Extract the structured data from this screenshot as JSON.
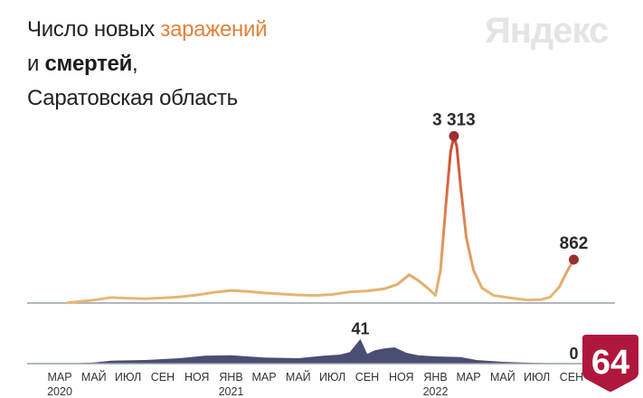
{
  "header": {
    "title_line1_prefix": "Число новых ",
    "title_line1_accent": "заражений",
    "title_line2_prefix": "и ",
    "title_line2_bold": "смертей",
    "title_line2_suffix": ",",
    "title_line3": "Саратовская область"
  },
  "brand": {
    "logo_text": "Яндекс"
  },
  "badge": {
    "label": "64"
  },
  "colors": {
    "infections": "#e6b977",
    "infections_peak": "#c9452e",
    "deaths": "#4a4e72",
    "marker": "#9a2f2f",
    "axis": "#9aa0aa",
    "badge": "#b0173d"
  },
  "chart_data": [
    {
      "type": "line",
      "name": "infections",
      "x": [
        "2020-03-15",
        "2020-04-01",
        "2020-05-01",
        "2020-06-01",
        "2020-07-01",
        "2020-08-01",
        "2020-09-01",
        "2020-10-01",
        "2020-11-01",
        "2020-12-01",
        "2021-01-01",
        "2021-02-01",
        "2021-03-01",
        "2021-04-01",
        "2021-05-01",
        "2021-06-01",
        "2021-07-01",
        "2021-08-01",
        "2021-09-01",
        "2021-10-01",
        "2021-10-25",
        "2021-11-15",
        "2021-12-01",
        "2021-12-20",
        "2022-01-01",
        "2022-01-10",
        "2022-01-20",
        "2022-01-28",
        "2022-02-03",
        "2022-02-08",
        "2022-02-15",
        "2022-02-25",
        "2022-03-10",
        "2022-03-25",
        "2022-04-15",
        "2022-05-15",
        "2022-06-15",
        "2022-07-10",
        "2022-07-25",
        "2022-08-10",
        "2022-08-25",
        "2022-09-05"
      ],
      "y": [
        5,
        25,
        60,
        110,
        95,
        85,
        100,
        120,
        160,
        210,
        250,
        230,
        200,
        180,
        160,
        150,
        170,
        220,
        240,
        280,
        370,
        560,
        450,
        280,
        150,
        650,
        2000,
        3000,
        3313,
        3100,
        2300,
        1300,
        650,
        300,
        150,
        100,
        60,
        70,
        120,
        320,
        650,
        862
      ],
      "annotations": [
        {
          "x": "2022-02-03",
          "label": "3 313"
        },
        {
          "x": "2022-09-05",
          "label": "862"
        }
      ],
      "ylim": [
        0,
        3500
      ]
    },
    {
      "type": "area",
      "name": "deaths",
      "x": [
        "2020-03-15",
        "2020-05-01",
        "2020-06-01",
        "2020-08-01",
        "2020-10-01",
        "2020-11-15",
        "2021-01-01",
        "2021-03-01",
        "2021-05-01",
        "2021-06-15",
        "2021-07-15",
        "2021-08-01",
        "2021-08-20",
        "2021-09-01",
        "2021-09-15",
        "2021-10-01",
        "2021-10-20",
        "2021-11-10",
        "2021-12-01",
        "2022-01-01",
        "2022-02-15",
        "2022-03-15",
        "2022-05-01",
        "2022-07-01",
        "2022-09-05"
      ],
      "y": [
        0,
        2,
        5,
        6,
        9,
        13,
        14,
        10,
        9,
        13,
        15,
        19,
        41,
        16,
        22,
        25,
        27,
        18,
        14,
        12,
        11,
        6,
        3,
        1,
        0
      ],
      "annotations": [
        {
          "x": "2021-08-20",
          "label": "41"
        },
        {
          "x": "2022-09-05",
          "label": "0"
        }
      ],
      "ylim": [
        0,
        45
      ]
    }
  ],
  "x_axis": {
    "ticks": [
      {
        "date": "2020-03-01",
        "label": "МАР",
        "year": "2020"
      },
      {
        "date": "2020-05-01",
        "label": "МАЙ"
      },
      {
        "date": "2020-07-01",
        "label": "ИЮЛ"
      },
      {
        "date": "2020-09-01",
        "label": "СЕН"
      },
      {
        "date": "2020-11-01",
        "label": "НОЯ"
      },
      {
        "date": "2021-01-01",
        "label": "ЯНВ",
        "year": "2021"
      },
      {
        "date": "2021-03-01",
        "label": "МАР"
      },
      {
        "date": "2021-05-01",
        "label": "МАЙ"
      },
      {
        "date": "2021-07-01",
        "label": "ИЮЛ"
      },
      {
        "date": "2021-09-01",
        "label": "СЕН"
      },
      {
        "date": "2021-11-01",
        "label": "НОЯ"
      },
      {
        "date": "2022-01-01",
        "label": "ЯНВ",
        "year": "2022"
      },
      {
        "date": "2022-03-01",
        "label": "МАР"
      },
      {
        "date": "2022-05-01",
        "label": "МАЙ"
      },
      {
        "date": "2022-07-01",
        "label": "ИЮЛ"
      },
      {
        "date": "2022-09-01",
        "label": "СЕН"
      }
    ]
  }
}
